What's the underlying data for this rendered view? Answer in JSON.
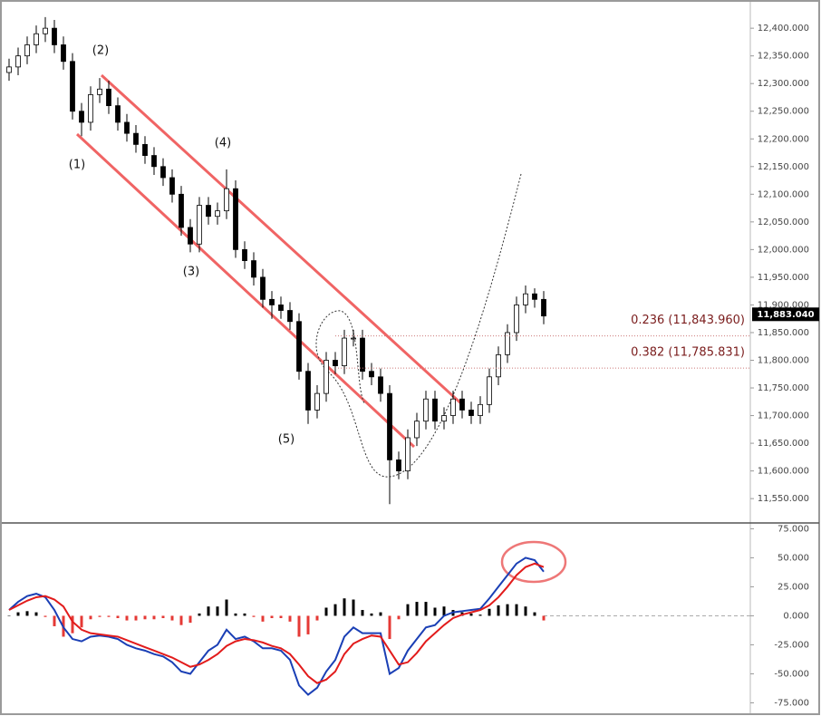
{
  "chart_data": [
    {
      "type": "candlestick",
      "color": "#000000",
      "up_fill": "#ffffff",
      "open": [
        12320,
        12330,
        12350,
        12370,
        12390,
        12400,
        12370,
        12340,
        12250,
        12230,
        12280,
        12290,
        12260,
        12230,
        12210,
        12190,
        12170,
        12150,
        12130,
        12100,
        12040,
        12010,
        12080,
        12060,
        12070,
        12110,
        12000,
        11980,
        11950,
        11910,
        11900,
        11890,
        11870,
        11780,
        11710,
        11740,
        11800,
        11790,
        11840,
        11840,
        11780,
        11770,
        11740,
        11620,
        11600,
        11660,
        11690,
        11730,
        11690,
        11700,
        11730,
        11710,
        11700,
        11720,
        11770,
        11810,
        11850,
        11900,
        11920,
        11910
      ],
      "high": [
        12345,
        12365,
        12385,
        12405,
        12420,
        12415,
        12385,
        12355,
        12265,
        12295,
        12310,
        12305,
        12275,
        12245,
        12225,
        12205,
        12185,
        12165,
        12145,
        12115,
        12055,
        12095,
        12095,
        12085,
        12145,
        12125,
        12015,
        11995,
        11965,
        11925,
        11915,
        11905,
        11885,
        11795,
        11755,
        11815,
        11815,
        11855,
        11855,
        11855,
        11795,
        11785,
        11755,
        11635,
        11675,
        11705,
        11745,
        11745,
        11715,
        11745,
        11745,
        11725,
        11735,
        11785,
        11825,
        11865,
        11915,
        11935,
        11930,
        11925
      ],
      "low": [
        12305,
        12315,
        12335,
        12355,
        12375,
        12355,
        12325,
        12235,
        12205,
        12215,
        12265,
        12245,
        12215,
        12195,
        12175,
        12155,
        12135,
        12115,
        12085,
        12025,
        11995,
        11995,
        12045,
        12045,
        12055,
        11985,
        11965,
        11935,
        11895,
        11875,
        11875,
        11855,
        11765,
        11685,
        11695,
        11725,
        11775,
        11775,
        11825,
        11765,
        11755,
        11725,
        11540,
        11585,
        11585,
        11645,
        11675,
        11675,
        11675,
        11685,
        11695,
        11685,
        11685,
        11705,
        11755,
        11795,
        11835,
        11885,
        11895,
        11865
      ],
      "close": [
        12330,
        12350,
        12370,
        12390,
        12400,
        12370,
        12340,
        12250,
        12230,
        12280,
        12290,
        12260,
        12230,
        12210,
        12190,
        12170,
        12150,
        12130,
        12100,
        12040,
        12010,
        12080,
        12060,
        12070,
        12110,
        12000,
        11980,
        11950,
        11910,
        11900,
        11890,
        11870,
        11780,
        11710,
        11740,
        11800,
        11790,
        11840,
        11840,
        11780,
        11770,
        11740,
        11620,
        11600,
        11660,
        11690,
        11730,
        11690,
        11700,
        11730,
        11710,
        11700,
        11720,
        11770,
        11810,
        11850,
        11900,
        11920,
        11910,
        11880
      ],
      "ylim": [
        11506,
        12451
      ],
      "yticks": [
        {
          "value": 12400,
          "label": "12,400.000"
        },
        {
          "value": 12350,
          "label": "12,350.000"
        },
        {
          "value": 12300,
          "label": "12,300.000"
        },
        {
          "value": 12250,
          "label": "12,250.000"
        },
        {
          "value": 12200,
          "label": "12,200.000"
        },
        {
          "value": 12150,
          "label": "12,150.000"
        },
        {
          "value": 12100,
          "label": "12,100.000"
        },
        {
          "value": 12050,
          "label": "12,050.000"
        },
        {
          "value": 12000,
          "label": "12,000.000"
        },
        {
          "value": 11950,
          "label": "11,950.000"
        },
        {
          "value": 11900,
          "label": "11,900.000"
        },
        {
          "value": 11850,
          "label": "11,850.000"
        },
        {
          "value": 11800,
          "label": "11,800.000"
        },
        {
          "value": 11750,
          "label": "11,750.000"
        },
        {
          "value": 11700,
          "label": "11,700.000"
        },
        {
          "value": 11650,
          "label": "11,650.000"
        },
        {
          "value": 11600,
          "label": "11,600.000"
        },
        {
          "value": 11550,
          "label": "11,550.000"
        }
      ],
      "last_price": {
        "value": 11883.04,
        "label": "11,883.040"
      },
      "fib_levels": [
        {
          "value": 11843.96,
          "label": "0.236 (11,843.960)"
        },
        {
          "value": 11785.831,
          "label": "0.382 (11,785.831)"
        }
      ],
      "annotations": [
        "(1)",
        "(2)",
        "(3)",
        "(4)",
        "(5)"
      ]
    },
    {
      "type": "macd",
      "series": [
        {
          "color": "#1a3fb5",
          "values": [
            5,
            12,
            17,
            19,
            16,
            5,
            -10,
            -20,
            -22,
            -18,
            -17,
            -18,
            -20,
            -25,
            -28,
            -30,
            -33,
            -35,
            -40,
            -48,
            -50,
            -40,
            -30,
            -25,
            -12,
            -20,
            -18,
            -22,
            -28,
            -28,
            -30,
            -38,
            -60,
            -68,
            -62,
            -48,
            -38,
            -18,
            -10,
            -15,
            -15,
            -15,
            -50,
            -45,
            -30,
            -20,
            -10,
            -8,
            0,
            3,
            4,
            5,
            6,
            15,
            25,
            35,
            45,
            50,
            48,
            38
          ]
        },
        {
          "color": "#e21b1b",
          "values": [
            5,
            9,
            13,
            16,
            17,
            14,
            8,
            -5,
            -12,
            -15,
            -16,
            -17,
            -18,
            -21,
            -24,
            -27,
            -30,
            -33,
            -36,
            -40,
            -44,
            -42,
            -38,
            -33,
            -26,
            -22,
            -20,
            -21,
            -23,
            -26,
            -28,
            -33,
            -42,
            -52,
            -58,
            -55,
            -48,
            -33,
            -24,
            -20,
            -17,
            -18,
            -30,
            -42,
            -40,
            -32,
            -22,
            -15,
            -8,
            -2,
            1,
            3,
            5,
            9,
            16,
            25,
            35,
            42,
            45,
            42
          ]
        }
      ],
      "histogram": {
        "up_color": "#000000",
        "down_color": "#e53935",
        "values": [
          0,
          3,
          4,
          3,
          -1,
          -9,
          -18,
          -15,
          -10,
          -3,
          -1,
          -1,
          -2,
          -4,
          -4,
          -3,
          -3,
          -2,
          -4,
          -8,
          -6,
          2,
          8,
          8,
          14,
          2,
          2,
          -1,
          -5,
          -2,
          -2,
          -5,
          -18,
          -16,
          -4,
          7,
          10,
          15,
          14,
          5,
          2,
          3,
          -20,
          -3,
          10,
          12,
          12,
          7,
          8,
          5,
          3,
          2,
          1,
          6,
          9,
          10,
          10,
          8,
          3,
          -4
        ]
      },
      "ylim": [
        -84,
        80
      ],
      "yticks": [
        {
          "value": 75,
          "label": "75.000"
        },
        {
          "value": 50,
          "label": "50.000"
        },
        {
          "value": 25,
          "label": "25.000"
        },
        {
          "value": 0,
          "label": "0.000"
        },
        {
          "value": -25,
          "label": "-25.000"
        },
        {
          "value": -50,
          "label": "-50.000"
        },
        {
          "value": -75,
          "label": "-75.000"
        }
      ]
    }
  ]
}
